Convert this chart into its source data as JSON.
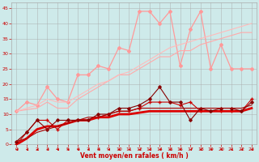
{
  "x": [
    0,
    1,
    2,
    3,
    4,
    5,
    6,
    7,
    8,
    9,
    10,
    11,
    12,
    13,
    14,
    15,
    16,
    17,
    18,
    19,
    20,
    21,
    22,
    23
  ],
  "background_color": "#ceeaea",
  "grid_color": "#aaaaaa",
  "xlabel": "Vent moyen/en rafales ( km/h )",
  "xlabel_color": "#cc0000",
  "series": [
    {
      "name": "line_pink_jagged",
      "color": "#ff9999",
      "lw": 0.9,
      "marker": "D",
      "markersize": 2.0,
      "y": [
        11,
        14,
        13,
        19,
        15,
        14,
        23,
        23,
        26,
        25,
        32,
        31,
        44,
        44,
        40,
        44,
        26,
        38,
        44,
        25,
        33,
        25,
        25,
        25
      ]
    },
    {
      "name": "line_pink_smooth1",
      "color": "#ffaaaa",
      "lw": 0.8,
      "marker": null,
      "markersize": 0,
      "y": [
        11,
        11.5,
        12,
        14,
        12,
        12,
        15,
        17,
        19,
        21,
        23,
        23,
        25,
        27,
        29,
        29,
        31,
        31,
        33,
        34,
        35,
        36,
        37,
        37
      ]
    },
    {
      "name": "line_pink_smooth2",
      "color": "#ffbbbb",
      "lw": 0.8,
      "marker": null,
      "markersize": 0,
      "y": [
        11,
        12,
        13,
        15,
        14,
        14,
        16,
        18,
        20,
        21,
        23,
        24,
        26,
        28,
        30,
        32,
        33,
        34,
        35,
        36,
        37,
        38,
        39,
        40
      ]
    },
    {
      "name": "line_dark_jagged_markers",
      "color": "#cc0000",
      "lw": 0.8,
      "marker": "+",
      "markersize": 2.5,
      "y": [
        0,
        4,
        8,
        8,
        5,
        8,
        8,
        8,
        9,
        10,
        11,
        11,
        12,
        14,
        14,
        14,
        13,
        14,
        11,
        11,
        11,
        11,
        11,
        15
      ]
    },
    {
      "name": "line_dark_thick",
      "color": "#dd0000",
      "lw": 2.0,
      "marker": null,
      "markersize": 0,
      "y": [
        0,
        2,
        5,
        6,
        6,
        7,
        8,
        8,
        9,
        9,
        10,
        10,
        10.5,
        11,
        11,
        11,
        11,
        11,
        11,
        11,
        11,
        11,
        11,
        12
      ]
    },
    {
      "name": "line_darkred_jagged",
      "color": "#880000",
      "lw": 0.8,
      "marker": "D",
      "markersize": 1.8,
      "y": [
        1,
        4,
        8,
        5,
        8,
        8,
        8,
        8,
        10,
        10,
        12,
        12,
        13,
        15,
        19,
        14,
        14,
        8,
        12,
        11,
        12,
        12,
        11,
        14
      ]
    },
    {
      "name": "line_dark_smooth",
      "color": "#aa0000",
      "lw": 0.8,
      "marker": null,
      "markersize": 0,
      "y": [
        1,
        2,
        4,
        5,
        6,
        7,
        8,
        9,
        9,
        10,
        11,
        11,
        12,
        12,
        12,
        12,
        12,
        12,
        12,
        12,
        12,
        12,
        12,
        13
      ]
    }
  ],
  "ylim": [
    0,
    47
  ],
  "xlim": [
    -0.5,
    23.5
  ],
  "yticks": [
    0,
    5,
    10,
    15,
    20,
    25,
    30,
    35,
    40,
    45
  ],
  "xticks": [
    0,
    1,
    2,
    3,
    4,
    5,
    6,
    7,
    8,
    9,
    10,
    11,
    12,
    13,
    14,
    15,
    16,
    17,
    18,
    19,
    20,
    21,
    22,
    23
  ]
}
